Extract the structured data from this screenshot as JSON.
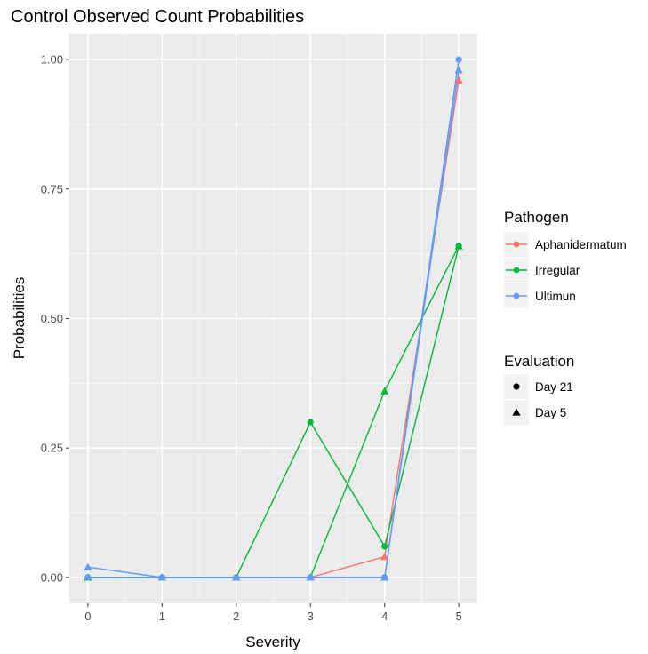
{
  "chart_data": {
    "type": "line",
    "title": "Control Observed Count Probabilities",
    "xlabel": "Severity",
    "ylabel": "Probabilities",
    "x": [
      0,
      1,
      2,
      3,
      4,
      5
    ],
    "xlim": [
      -0.25,
      5.25
    ],
    "ylim": [
      -0.05,
      1.05
    ],
    "x_ticks": [
      "0",
      "1",
      "2",
      "3",
      "4",
      "5"
    ],
    "y_ticks": [
      "0.00",
      "0.25",
      "0.50",
      "0.75",
      "1.00"
    ],
    "grid": true,
    "legend_position": "right",
    "colors": {
      "Aphanidermatum": "#F8766D",
      "Irregular": "#00BA38",
      "Ultimun": "#619CFF"
    },
    "series": [
      {
        "pathogen": "Aphanidermatum",
        "evaluation": "Day 21",
        "values": [
          0.0,
          0.0,
          0.0,
          0.0,
          0.0,
          1.0
        ]
      },
      {
        "pathogen": "Aphanidermatum",
        "evaluation": "Day 5",
        "values": [
          0.0,
          0.0,
          0.0,
          0.0,
          0.04,
          0.96
        ]
      },
      {
        "pathogen": "Irregular",
        "evaluation": "Day 21",
        "values": [
          0.0,
          0.0,
          0.0,
          0.3,
          0.06,
          0.64
        ]
      },
      {
        "pathogen": "Irregular",
        "evaluation": "Day 5",
        "values": [
          0.0,
          0.0,
          0.0,
          0.0,
          0.36,
          0.64
        ]
      },
      {
        "pathogen": "Ultimun",
        "evaluation": "Day 21",
        "values": [
          0.0,
          0.0,
          0.0,
          0.0,
          0.0,
          1.0
        ]
      },
      {
        "pathogen": "Ultimun",
        "evaluation": "Day 5",
        "values": [
          0.02,
          0.0,
          0.0,
          0.0,
          0.0,
          0.98
        ]
      }
    ],
    "legends": [
      {
        "title": "Pathogen",
        "items": [
          "Aphanidermatum",
          "Irregular",
          "Ultimun"
        ]
      },
      {
        "title": "Evaluation",
        "items": [
          "Day 21",
          "Day 5"
        ]
      }
    ]
  }
}
